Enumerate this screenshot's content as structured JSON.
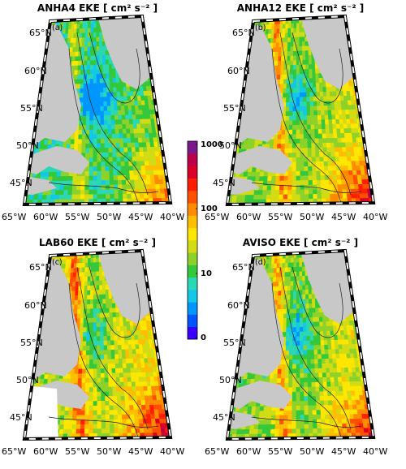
{
  "figure": {
    "panels": [
      {
        "id": "a",
        "label": "(a)",
        "title": "ANHA4 EKE [ cm² s⁻² ]",
        "field": "ANHA4",
        "level": 0.18
      },
      {
        "id": "b",
        "label": "(b)",
        "title": "ANHA12 EKE [ cm² s⁻² ]",
        "field": "ANHA12",
        "level": 0.45
      },
      {
        "id": "c",
        "label": "(c)",
        "title": "LAB60 EKE [ cm² s⁻² ]",
        "field": "LAB60",
        "level": 0.55
      },
      {
        "id": "d",
        "label": "(d)",
        "title": "AVISO EKE [ cm² s⁻² ]",
        "field": "AVISO",
        "level": 0.42
      }
    ],
    "lat_labels": [
      "65°N",
      "60°N",
      "55°N",
      "50°N",
      "45°N"
    ],
    "lon_labels": [
      "65°W",
      "60°W",
      "55°W",
      "50°W",
      "45°W",
      "40°W"
    ],
    "colorbar": {
      "scale": "log",
      "tick_labels": [
        "1000",
        "100",
        "10",
        "0"
      ],
      "colors": [
        "#3a00ff",
        "#0055ff",
        "#0096ff",
        "#12c8e6",
        "#2bd8b4",
        "#34c83c",
        "#8cd22a",
        "#d2dc14",
        "#ffe600",
        "#ffbe00",
        "#ff8c00",
        "#ff5000",
        "#ff1e00",
        "#dc0028",
        "#be004a",
        "#7a1a8a"
      ]
    },
    "land_color": "#c8c8c8",
    "ocean_missing_color": "#ffffff"
  }
}
